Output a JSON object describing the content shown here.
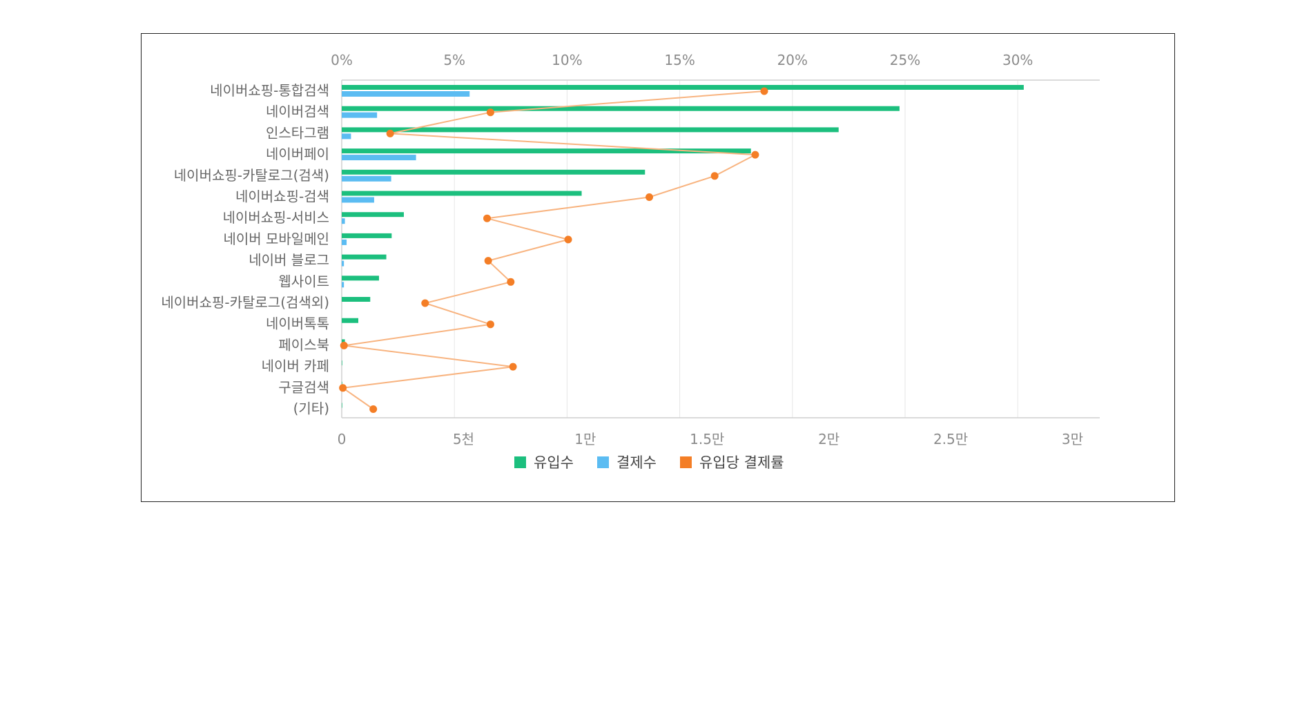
{
  "chart_data": {
    "type": "bar",
    "orientation": "horizontal",
    "categories": [
      "네이버쇼핑-통합검색",
      "네이버검색",
      "인스타그램",
      "네이버페이",
      "네이버쇼핑-카탈로그(검색)",
      "네이버쇼핑-검색",
      "네이버쇼핑-서비스",
      "네이버 모바일메인",
      "네이버 블로그",
      "웹사이트",
      "네이버쇼핑-카탈로그(검색외)",
      "네이버톡톡",
      "페이스북",
      "네이버 카페",
      "구글검색",
      "(기타)"
    ],
    "series": [
      {
        "name": "유입수",
        "axis": "bottom",
        "color": "#1cbf7e",
        "values": [
          28000,
          22900,
          20400,
          16800,
          12450,
          9850,
          2550,
          2050,
          1830,
          1530,
          1170,
          680,
          130,
          20,
          20,
          20
        ]
      },
      {
        "name": "결제수",
        "axis": "bottom",
        "color": "#5bbcf2",
        "values": [
          5250,
          1450,
          380,
          3050,
          2030,
          1330,
          130,
          200,
          90,
          90,
          0,
          0,
          0,
          0,
          0,
          0
        ]
      },
      {
        "name": "유입당 결제률",
        "axis": "top",
        "type": "line",
        "color": "#f47e26",
        "values": [
          18.75,
          6.6,
          2.15,
          18.35,
          16.55,
          13.65,
          6.45,
          10.05,
          6.5,
          7.5,
          3.7,
          6.6,
          0.1,
          7.6,
          0.05,
          1.4
        ]
      }
    ],
    "x_axis_bottom": {
      "ylim": [
        0,
        30000
      ],
      "ticks": [
        0,
        5000,
        10000,
        15000,
        20000,
        25000,
        30000
      ],
      "tick_labels": [
        "0",
        "5천",
        "1만",
        "1.5만",
        "2만",
        "2.5만",
        "3만"
      ]
    },
    "x_axis_top": {
      "ylim": [
        0,
        33
      ],
      "ticks": [
        0,
        5,
        10,
        15,
        20,
        25,
        30
      ],
      "tick_labels": [
        "0%",
        "5%",
        "10%",
        "15%",
        "20%",
        "25%",
        "30%"
      ]
    },
    "grid": true,
    "legend_position": "bottom-center",
    "title": "",
    "xlabel": "",
    "ylabel": ""
  }
}
